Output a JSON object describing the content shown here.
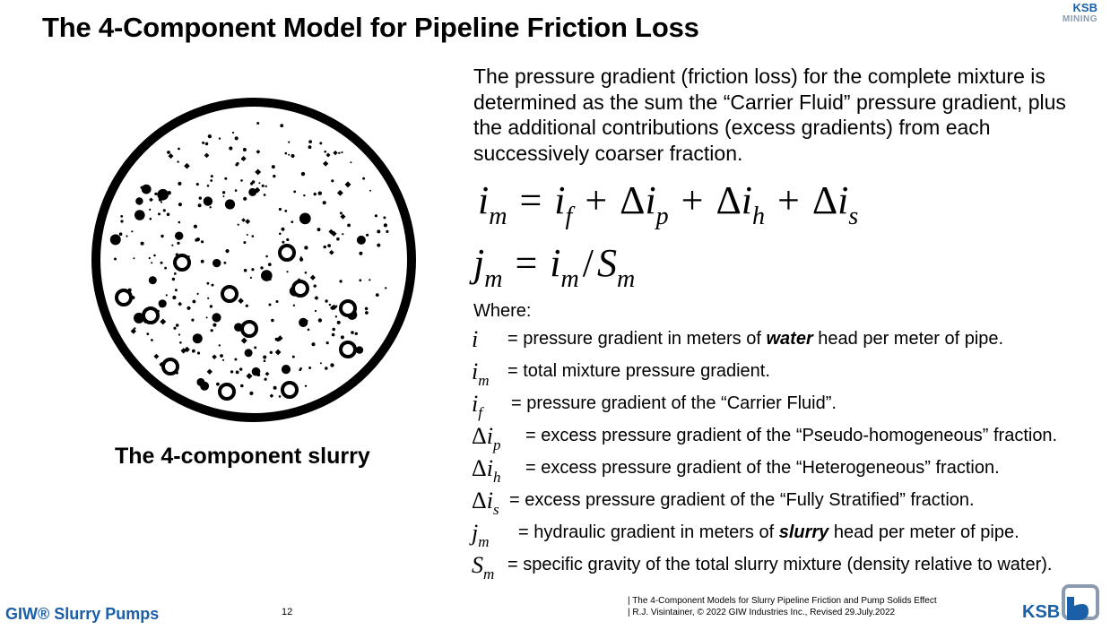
{
  "header": {
    "title": "The 4-Component Model for Pipeline Friction Loss",
    "brand_line1": "KSB",
    "brand_line2": "MINING"
  },
  "figure": {
    "caption": "The 4-component slurry"
  },
  "intro": "The pressure gradient (friction loss) for the complete mixture is determined as the sum the “Carrier Fluid” pressure gradient, plus the additional contributions (excess gradients) from each successively coarser fraction.",
  "equations": {
    "eq1": {
      "lhs": "i",
      "lhs_sub": "m",
      "t1": "i",
      "t1_sub": "f",
      "t2": "i",
      "t2_sub": "p",
      "t3": "i",
      "t3_sub": "h",
      "t4": "i",
      "t4_sub": "s"
    },
    "eq2": {
      "lhs": "j",
      "lhs_sub": "m",
      "num": "i",
      "num_sub": "m",
      "den": "S",
      "den_sub": "m"
    }
  },
  "where_label": "Where:",
  "definitions": [
    {
      "delta": "",
      "sym": "i",
      "sub": "",
      "text_before": "= pressure gradient in meters of ",
      "emph": "water",
      "text_after": " head per meter of pipe."
    },
    {
      "delta": "",
      "sym": "i",
      "sub": "m",
      "text_before": "= total mixture pressure gradient.",
      "emph": "",
      "text_after": ""
    },
    {
      "delta": "",
      "sym": "i",
      "sub": "f",
      "text_before": "= pressure gradient of the “Carrier Fluid”.",
      "emph": "",
      "text_after": ""
    },
    {
      "delta": "Δ",
      "sym": "i",
      "sub": "p",
      "text_before": "= excess pressure gradient of the “Pseudo-homogeneous” fraction.",
      "emph": "",
      "text_after": ""
    },
    {
      "delta": "Δ",
      "sym": "i",
      "sub": "h",
      "text_before": "= excess pressure gradient of the “Heterogeneous” fraction.",
      "emph": "",
      "text_after": ""
    },
    {
      "delta": "Δ",
      "sym": "i",
      "sub": "s",
      "text_before": "= excess pressure gradient of the “Fully Stratified” fraction.",
      "emph": "",
      "text_after": ""
    },
    {
      "delta": "",
      "sym": "j",
      "sub": "m",
      "text_before": "= hydraulic gradient in meters of ",
      "emph": "slurry",
      "text_after": " head per meter of pipe."
    },
    {
      "delta": "",
      "sym": "S",
      "sub": "m",
      "text_before": "= specific gravity of the total slurry mixture (density relative to water).",
      "emph": "",
      "text_after": ""
    }
  ],
  "footer": {
    "left_brand": "GIW® Slurry Pumps",
    "page_number": "12",
    "ref_line1": "| The 4-Component Models for Slurry Pipeline Friction and Pump Solids Effect",
    "ref_line2": "| R.J. Visintainer, © 2022 GIW Industries Inc., Revised 29.July.2022",
    "logo_text": "KSB"
  },
  "colors": {
    "brand_blue": "#1a5fa8",
    "text": "#000000",
    "logo_grey": "#8a9bb0"
  }
}
